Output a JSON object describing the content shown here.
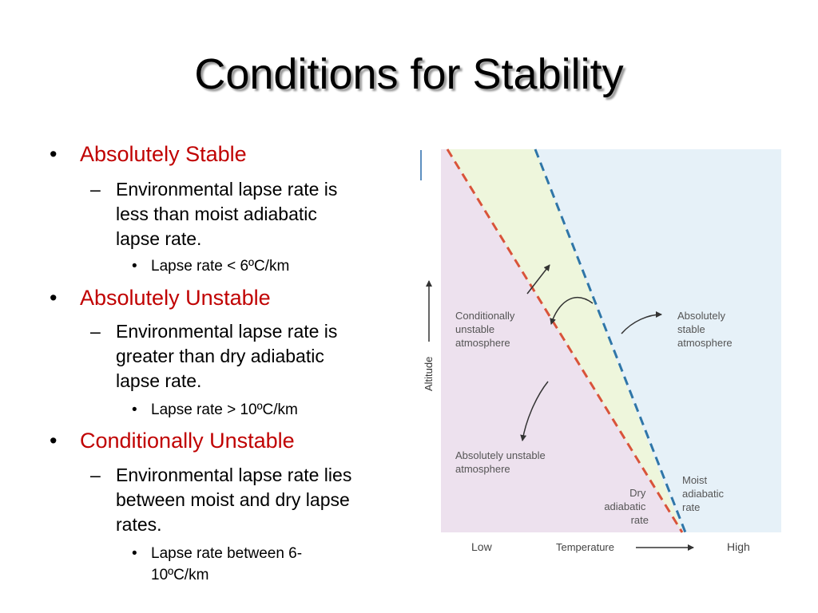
{
  "title": "Conditions for Stability",
  "bullets": [
    {
      "heading": "Absolutely Stable",
      "detail_lines": [
        "Environmental lapse rate is",
        "less than moist adiabatic",
        "lapse rate."
      ],
      "sub": [
        "Lapse rate < 6ºC/km"
      ]
    },
    {
      "heading": "Absolutely Unstable",
      "detail_lines": [
        "Environmental lapse rate is",
        "greater than dry adiabatic",
        "lapse rate."
      ],
      "sub": [
        "Lapse rate > 10ºC/km"
      ]
    },
    {
      "heading": "Conditionally Unstable",
      "detail_lines": [
        "Environmental lapse rate lies",
        "between moist and dry lapse",
        "rates."
      ],
      "sub": [
        "Lapse rate between 6-",
        "10ºC/km"
      ]
    }
  ],
  "diagram": {
    "y_axis_label": "Altitude",
    "x_axis_label": "Temperature",
    "x_low": "Low",
    "x_high": "High",
    "conditionally_unstable": [
      "Conditionally",
      "unstable",
      "atmosphere"
    ],
    "absolutely_stable": [
      "Absolutely",
      "stable",
      "atmosphere"
    ],
    "absolutely_unstable": [
      "Absolutely unstable",
      "atmosphere"
    ],
    "dry_adiabatic": [
      "Dry",
      "adiabatic",
      "rate"
    ],
    "moist_adiabatic": [
      "Moist",
      "adiabatic",
      "rate"
    ],
    "colors": {
      "unstable_region": "#ede1ee",
      "conditional_region": "#eef6dc",
      "stable_region": "#e6f1f8",
      "dry_line": "#d9533a",
      "moist_line": "#2f76a8",
      "heading_red": "#c00000"
    }
  }
}
